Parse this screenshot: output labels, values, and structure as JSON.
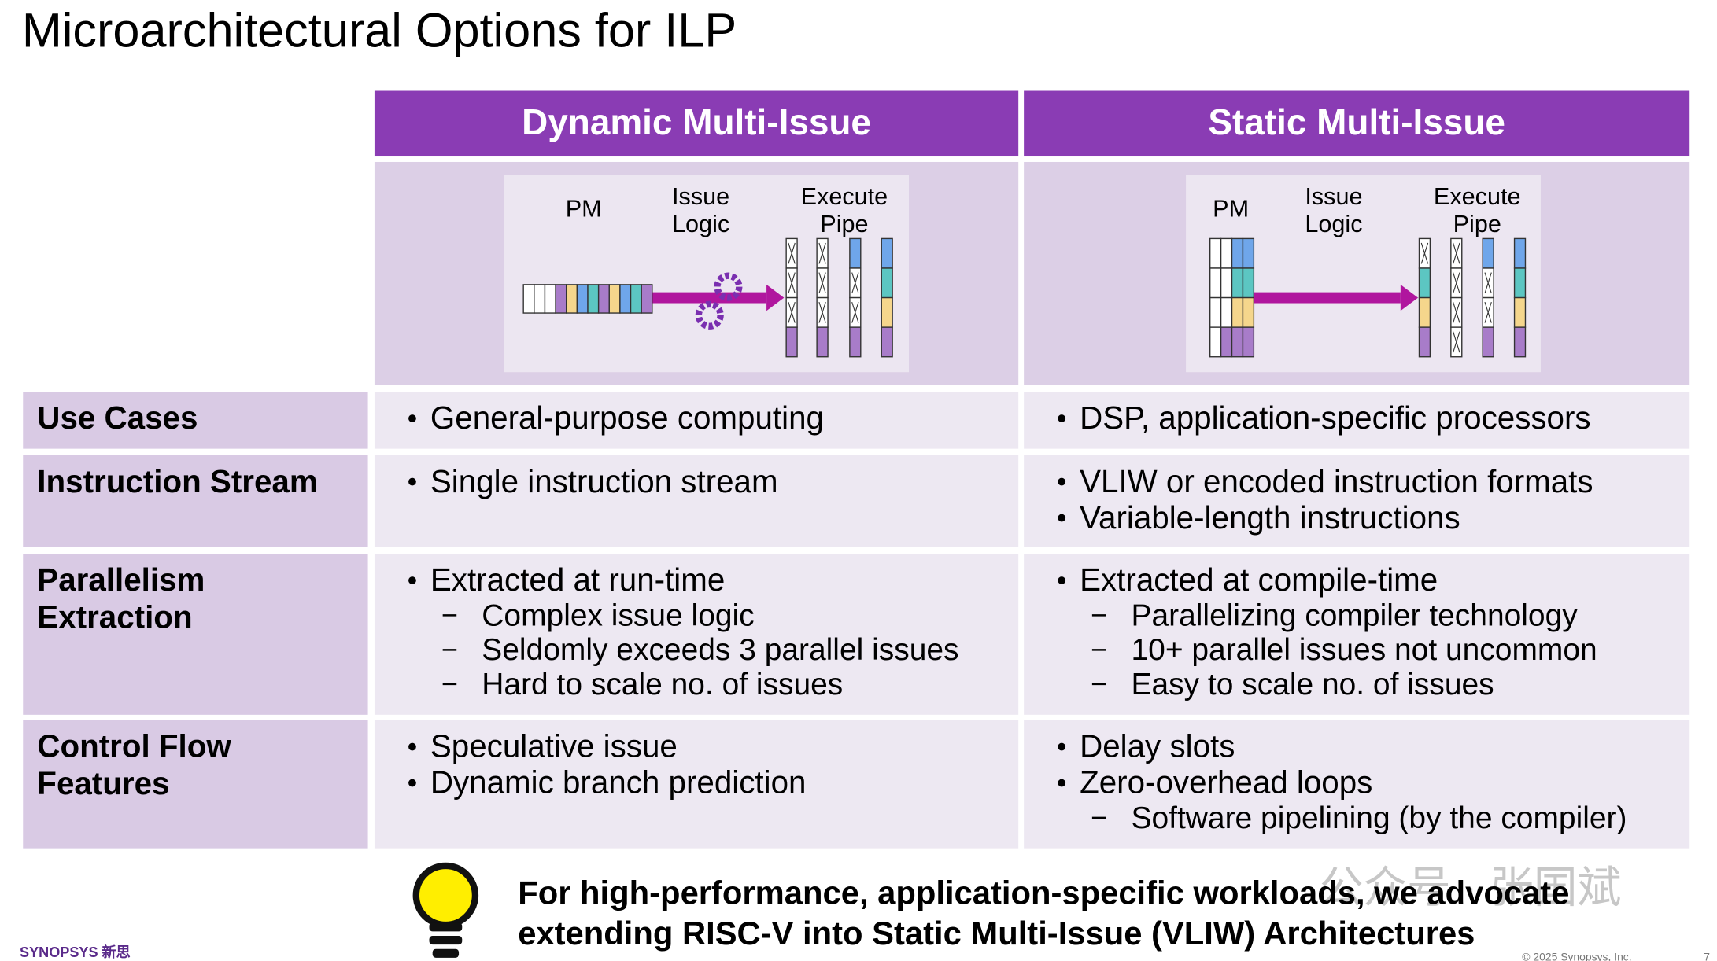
{
  "title": "Microarchitectural Options for ILP",
  "columns": [
    {
      "header": "Dynamic Multi-Issue",
      "diagram": {
        "pm": "PM",
        "issue": [
          "Issue",
          "Logic"
        ],
        "execute": [
          "Execute",
          "Pipe"
        ]
      }
    },
    {
      "header": "Static Multi-Issue",
      "diagram": {
        "pm": "PM",
        "issue": [
          "Issue",
          "Logic"
        ],
        "execute": [
          "Execute",
          "Pipe"
        ]
      }
    }
  ],
  "rows": [
    {
      "label": [
        "Use Cases"
      ],
      "cells": [
        [
          {
            "text": "General-purpose computing",
            "sub": []
          }
        ],
        [
          {
            "text": "DSP, application-specific processors",
            "sub": []
          }
        ]
      ]
    },
    {
      "label": [
        "Instruction Stream"
      ],
      "cells": [
        [
          {
            "text": "Single instruction stream",
            "sub": []
          }
        ],
        [
          {
            "text": "VLIW or encoded instruction formats",
            "sub": []
          },
          {
            "text": "Variable-length instructions",
            "sub": []
          }
        ]
      ]
    },
    {
      "label": [
        "Parallelism",
        "Extraction"
      ],
      "cells": [
        [
          {
            "text": "Extracted at run-time",
            "sub": [
              "Complex issue logic",
              "Seldomly exceeds 3 parallel issues",
              "Hard to scale no. of issues"
            ]
          }
        ],
        [
          {
            "text": "Extracted at compile-time",
            "sub": [
              "Parallelizing compiler technology",
              "10+ parallel issues not uncommon",
              "Easy to scale no. of issues"
            ]
          }
        ]
      ]
    },
    {
      "label": [
        "Control Flow",
        "Features"
      ],
      "cells": [
        [
          {
            "text": "Speculative issue",
            "sub": []
          },
          {
            "text": "Dynamic branch prediction",
            "sub": []
          }
        ],
        [
          {
            "text": "Delay slots",
            "sub": []
          },
          {
            "text": "Zero-overhead loops",
            "sub": [
              "Software pipelining (by the compiler)"
            ]
          }
        ]
      ]
    }
  ],
  "callout": [
    "For high-performance, application-specific workloads, we advocate",
    "extending RISC-V into Static Multi-Issue (VLIW) Architectures"
  ],
  "watermark": "公众号 · 张国斌",
  "footer": {
    "logo": "SYNOPSYS 新思",
    "copyright": "© 2025 Synopsys, Inc.",
    "page": "7"
  }
}
